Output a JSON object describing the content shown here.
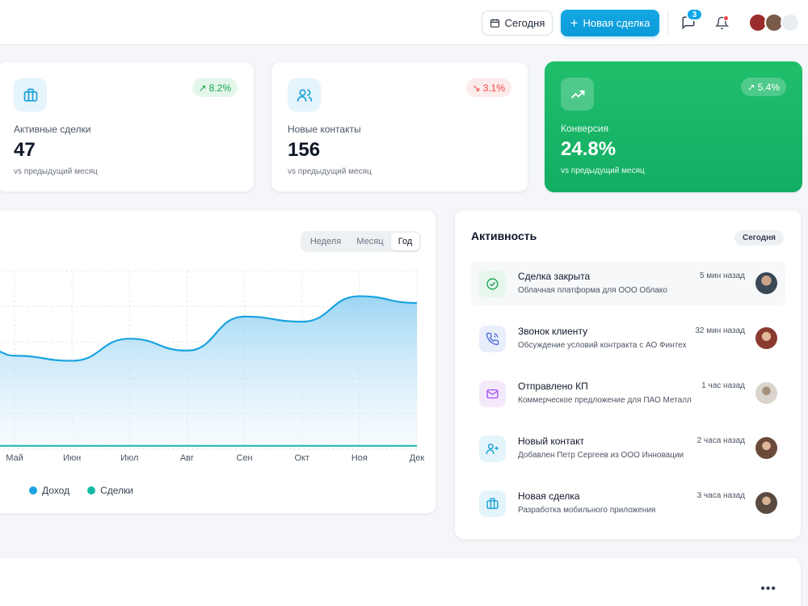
{
  "header": {
    "today_button": "Сегодня",
    "new_deal_button": "Новая сделка",
    "messages_badge": "3"
  },
  "stats": [
    {
      "label": "Активные сделки",
      "value": "47",
      "sub": "vs предыдущий месяц",
      "change": "8.2%",
      "trend": "up",
      "icon": "briefcase-icon"
    },
    {
      "label": "Новые контакты",
      "value": "156",
      "sub": "vs предыдущий месяц",
      "change": "3.1%",
      "trend": "down",
      "icon": "users-icon"
    },
    {
      "label": "Конверсия",
      "value": "24.8%",
      "sub": "vs предыдущий месяц",
      "change": "5.4%",
      "trend": "up",
      "icon": "trending-up-icon"
    }
  ],
  "chart": {
    "tabs": [
      "Неделя",
      "Месяц",
      "Год"
    ],
    "active_tab": "Год",
    "legend": [
      "Доход",
      "Сделки"
    ]
  },
  "chart_data": {
    "type": "area",
    "categories": [
      "Май",
      "Июн",
      "Июл",
      "Авг",
      "Сен",
      "Окт",
      "Ноя",
      "Дек"
    ],
    "series": [
      {
        "name": "Доход",
        "values": [
          55,
          52,
          65,
          58,
          78,
          75,
          90,
          86
        ],
        "color": "#1aa3e0"
      },
      {
        "name": "Сделки",
        "values": [
          2,
          2,
          2,
          2,
          2,
          2,
          2,
          2
        ],
        "color": "#14b8a6"
      }
    ],
    "ylim": [
      0,
      105
    ],
    "grid": true
  },
  "activity": {
    "title": "Активность",
    "filter": "Сегодня",
    "items": [
      {
        "title": "Сделка закрыта",
        "desc": "Облачная платформа для ООО Облако",
        "time": "5 мин назад",
        "icon": "check-circle-icon",
        "icon_bg": "#e6f6ec",
        "icon_color": "#22a55a",
        "avatar_color": "#3b4856"
      },
      {
        "title": "Звонок клиенту",
        "desc": "Обсуждение условий контракта с АО Финтех",
        "time": "32 мин назад",
        "icon": "phone-icon",
        "icon_bg": "#e8eefc",
        "icon_color": "#4f6fd8",
        "avatar_color": "#8a3a2e"
      },
      {
        "title": "Отправлено КП",
        "desc": "Коммерческое предложение для ПАО Металл",
        "time": "1 час назад",
        "icon": "mail-icon",
        "icon_bg": "#f4e9fb",
        "icon_color": "#a855f7",
        "avatar_color": "#7d7266"
      },
      {
        "title": "Новый контакт",
        "desc": "Добавлен Петр Сергеев из ООО Инновации",
        "time": "2 часа назад",
        "icon": "user-plus-icon",
        "icon_bg": "#e4f4fb",
        "icon_color": "#14a0d8",
        "avatar_color": "#6b4a3a"
      },
      {
        "title": "Новая сделка",
        "desc": "Разработка мобильного приложения",
        "time": "3 часа назад",
        "icon": "briefcase-icon",
        "icon_bg": "#e4f4fb",
        "icon_color": "#14a0d8",
        "avatar_color": "#5a4a40"
      }
    ]
  },
  "bottom": {
    "more": "•••"
  }
}
